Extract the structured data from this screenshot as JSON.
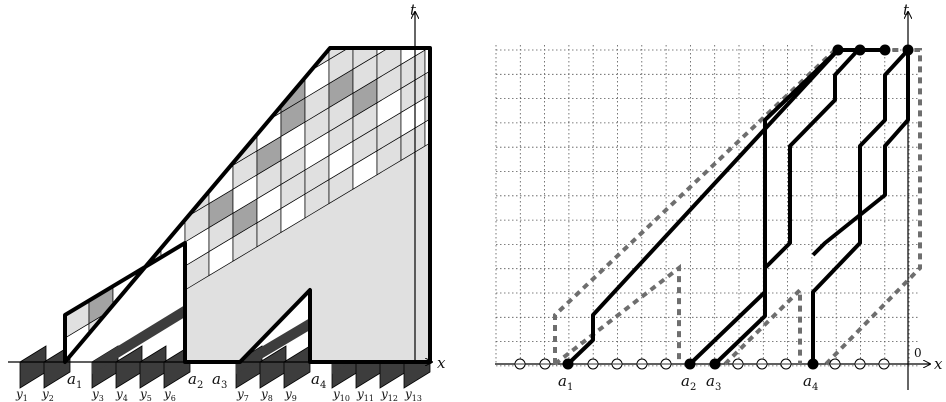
{
  "left_panel": {
    "axis_x_label": "x",
    "axis_t_label": "t",
    "a_labels": [
      "a",
      "a",
      "a",
      "a"
    ],
    "a_subscripts": [
      "1",
      "2",
      "3",
      "4"
    ],
    "y_labels": [
      "y",
      "y",
      "y",
      "y",
      "y",
      "y",
      "y",
      "y",
      "y",
      "y",
      "y",
      "y",
      "y"
    ],
    "y_subscripts": [
      "1",
      "2",
      "3",
      "4",
      "5",
      "6",
      "7",
      "8",
      "9",
      "10",
      "11",
      "12",
      "13"
    ],
    "colors": {
      "face_light": "#ffffff",
      "face_mid": "#e0e0e0",
      "face_gray": "#a3a3a3",
      "face_dark": "#3d3d3d",
      "outline": "#000000"
    }
  },
  "right_panel": {
    "axis_x_label": "x",
    "axis_t_label": "t",
    "origin_label": "0",
    "a_labels": [
      "a",
      "a",
      "a",
      "a"
    ],
    "a_subscripts": [
      "1",
      "2",
      "3",
      "4"
    ],
    "colors": {
      "path": "#000000",
      "dashed": "#6e6e6e",
      "grid": "#555555"
    }
  }
}
